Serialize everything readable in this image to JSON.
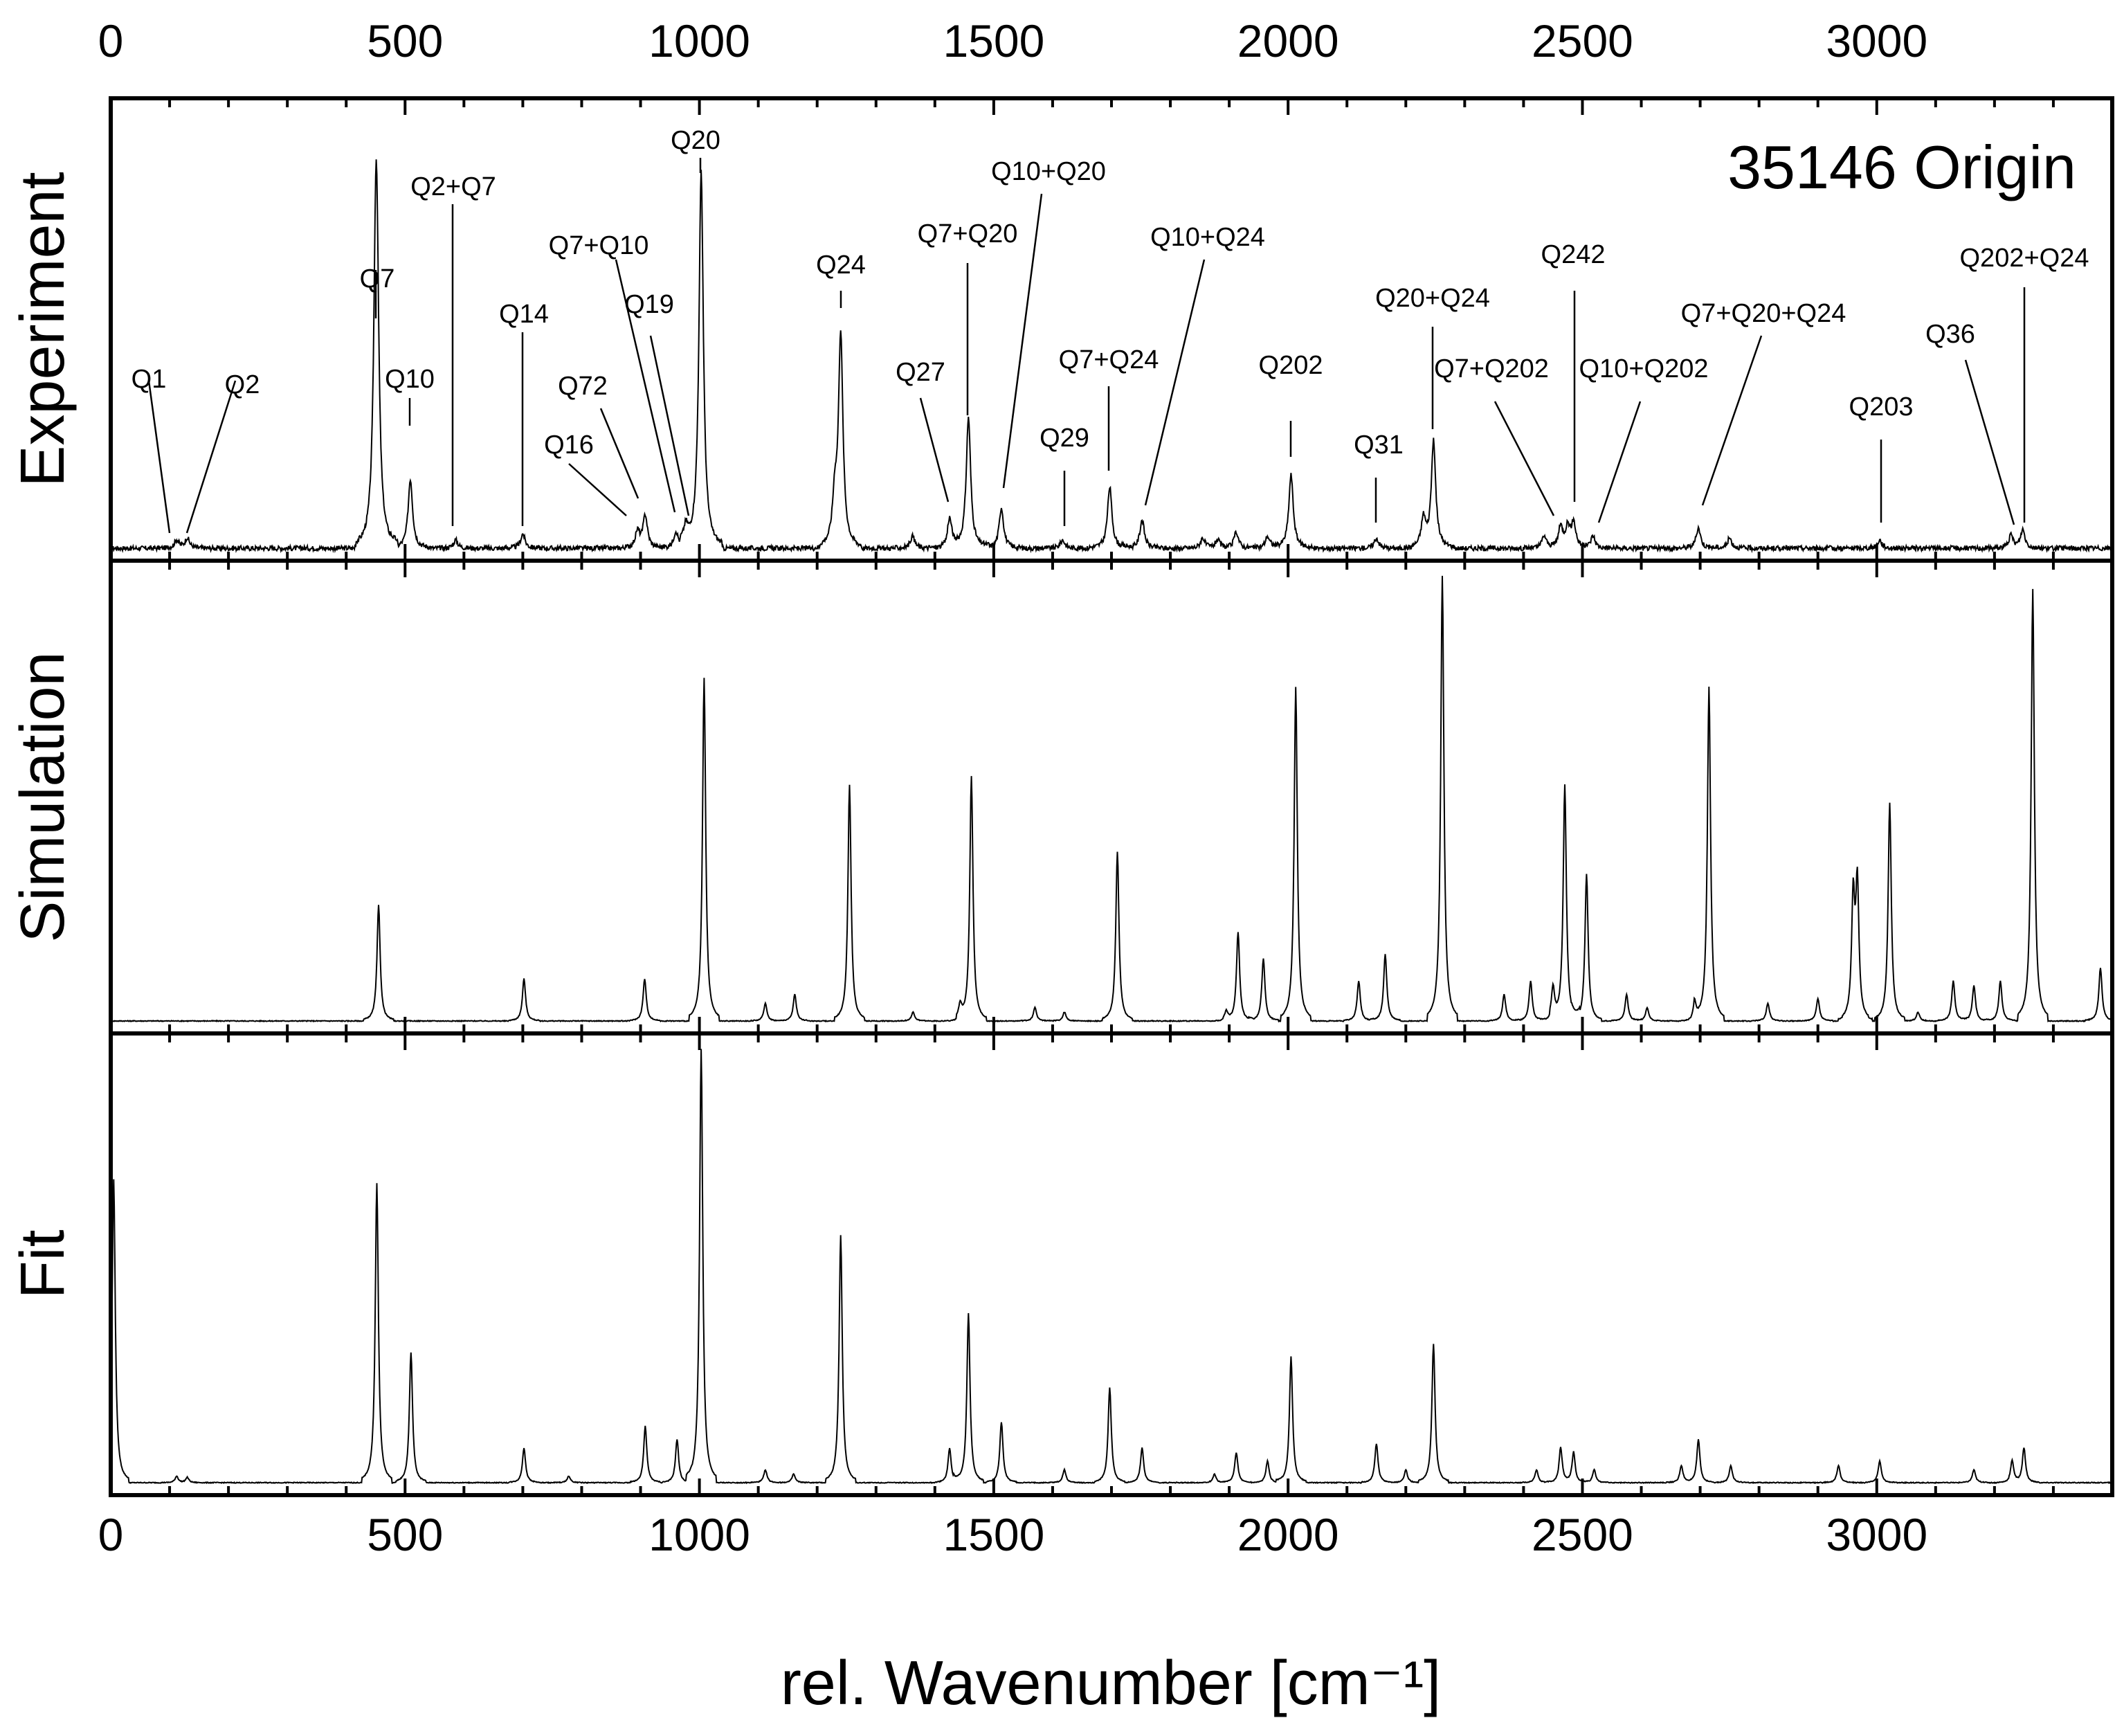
{
  "chart_data": {
    "type": "line",
    "title": "35146 Origin",
    "xlabel": "rel. Wavenumber [cm⁻¹]",
    "xlim": [
      0,
      3400
    ],
    "xticks": [
      0,
      500,
      1000,
      1500,
      2000,
      2500,
      3000
    ],
    "xtick_labels": [
      "0",
      "500",
      "1000",
      "1500",
      "2000",
      "2500",
      "3000"
    ],
    "minor_tick_step": 100,
    "ylim": [
      0,
      1
    ],
    "panels": [
      {
        "name": "Experiment",
        "ylabel": "Experiment",
        "peaks": [
          [
            112,
            0.02
          ],
          [
            130,
            0.025
          ],
          [
            450,
            0.48
          ],
          [
            452,
            0.52
          ],
          [
            509,
            0.17
          ],
          [
            586,
            0.02
          ],
          [
            700,
            0.035
          ],
          [
            895,
            0.04
          ],
          [
            908,
            0.08
          ],
          [
            960,
            0.04
          ],
          [
            977,
            0.04
          ],
          [
            1003,
            0.92
          ],
          [
            1230,
            0.11
          ],
          [
            1240,
            0.52
          ],
          [
            1362,
            0.03
          ],
          [
            1425,
            0.07
          ],
          [
            1457,
            0.32
          ],
          [
            1513,
            0.1
          ],
          [
            1617,
            0.02
          ],
          [
            1697,
            0.15
          ],
          [
            1752,
            0.07
          ],
          [
            1855,
            0.025
          ],
          [
            1880,
            0.02
          ],
          [
            1912,
            0.04
          ],
          [
            1965,
            0.03
          ],
          [
            2005,
            0.18
          ],
          [
            2150,
            0.025
          ],
          [
            2230,
            0.07
          ],
          [
            2247,
            0.26
          ],
          [
            2435,
            0.03
          ],
          [
            2463,
            0.05
          ],
          [
            2475,
            0.05
          ],
          [
            2485,
            0.06
          ],
          [
            2518,
            0.03
          ],
          [
            2697,
            0.05
          ],
          [
            2750,
            0.025
          ],
          [
            3005,
            0.02
          ],
          [
            3228,
            0.03
          ],
          [
            3248,
            0.045
          ]
        ],
        "labels": [
          {
            "text": "Q1",
            "x": 125
          },
          {
            "text": "Q2",
            "x": 140
          },
          {
            "text": "Q7",
            "x": 452
          },
          {
            "text": "Q10",
            "x": 509
          },
          {
            "text": "Q2+Q7",
            "x": 586
          },
          {
            "text": "Q14",
            "x": 703
          },
          {
            "text": "Q16",
            "x": 888
          },
          {
            "text": "Q72",
            "x": 905
          },
          {
            "text": "Q7+Q10",
            "x": 960
          },
          {
            "text": "Q19",
            "x": 977
          },
          {
            "text": "Q20",
            "x": 1003
          },
          {
            "text": "Q24",
            "x": 1241
          },
          {
            "text": "Q27",
            "x": 1425
          },
          {
            "text": "Q7+Q20",
            "x": 1457
          },
          {
            "text": "Q10+Q20",
            "x": 1513
          },
          {
            "text": "Q29",
            "x": 1617
          },
          {
            "text": "Q7+Q24",
            "x": 1697
          },
          {
            "text": "Q10+Q24",
            "x": 1752
          },
          {
            "text": "Q202",
            "x": 2005
          },
          {
            "text": "Q31",
            "x": 2150
          },
          {
            "text": "Q20+Q24",
            "x": 2247
          },
          {
            "text": "Q7+Q202",
            "x": 2463
          },
          {
            "text": "Q242",
            "x": 2485
          },
          {
            "text": "Q10+Q202",
            "x": 2518
          },
          {
            "text": "Q7+Q20+Q24",
            "x": 2697
          },
          {
            "text": "Q203",
            "x": 3005
          },
          {
            "text": "Q36",
            "x": 3228
          },
          {
            "text": "Q202+Q24",
            "x": 3248
          }
        ]
      },
      {
        "name": "Simulation",
        "ylabel": "Simulation",
        "peaks": [
          [
            455,
            0.26
          ],
          [
            702,
            0.095
          ],
          [
            907,
            0.095
          ],
          [
            1008,
            0.77
          ],
          [
            1112,
            0.04
          ],
          [
            1162,
            0.06
          ],
          [
            1255,
            0.53
          ],
          [
            1363,
            0.02
          ],
          [
            1443,
            0.03
          ],
          [
            1462,
            0.55
          ],
          [
            1570,
            0.03
          ],
          [
            1620,
            0.02
          ],
          [
            1710,
            0.38
          ],
          [
            1895,
            0.02
          ],
          [
            1915,
            0.2
          ],
          [
            1958,
            0.14
          ],
          [
            2013,
            0.75
          ],
          [
            2120,
            0.09
          ],
          [
            2165,
            0.15
          ],
          [
            2262,
            1.0
          ],
          [
            2367,
            0.06
          ],
          [
            2412,
            0.09
          ],
          [
            2450,
            0.07
          ],
          [
            2470,
            0.53
          ],
          [
            2507,
            0.33
          ],
          [
            2575,
            0.06
          ],
          [
            2610,
            0.03
          ],
          [
            2690,
            0.04
          ],
          [
            2715,
            0.75
          ],
          [
            2815,
            0.04
          ],
          [
            2900,
            0.05
          ],
          [
            2960,
            0.27
          ],
          [
            2967,
            0.3
          ],
          [
            3022,
            0.49
          ],
          [
            3070,
            0.02
          ],
          [
            3130,
            0.09
          ],
          [
            3165,
            0.08
          ],
          [
            3210,
            0.09
          ],
          [
            3265,
            0.97
          ],
          [
            3380,
            0.12
          ]
        ]
      },
      {
        "name": "Fit",
        "ylabel": "Fit",
        "peaks": [
          [
            5,
            0.7
          ],
          [
            112,
            0.015
          ],
          [
            130,
            0.012
          ],
          [
            452,
            0.69
          ],
          [
            510,
            0.3
          ],
          [
            702,
            0.08
          ],
          [
            778,
            0.015
          ],
          [
            908,
            0.13
          ],
          [
            962,
            0.1
          ],
          [
            1003,
            1.0
          ],
          [
            1112,
            0.03
          ],
          [
            1160,
            0.02
          ],
          [
            1240,
            0.57
          ],
          [
            1425,
            0.08
          ],
          [
            1457,
            0.39
          ],
          [
            1513,
            0.14
          ],
          [
            1620,
            0.03
          ],
          [
            1697,
            0.22
          ],
          [
            1752,
            0.08
          ],
          [
            1875,
            0.02
          ],
          [
            1912,
            0.07
          ],
          [
            1965,
            0.05
          ],
          [
            2005,
            0.29
          ],
          [
            2150,
            0.09
          ],
          [
            2200,
            0.03
          ],
          [
            2247,
            0.32
          ],
          [
            2422,
            0.03
          ],
          [
            2463,
            0.08
          ],
          [
            2485,
            0.07
          ],
          [
            2520,
            0.03
          ],
          [
            2668,
            0.04
          ],
          [
            2697,
            0.1
          ],
          [
            2752,
            0.04
          ],
          [
            2935,
            0.04
          ],
          [
            3005,
            0.05
          ],
          [
            3165,
            0.03
          ],
          [
            3230,
            0.05
          ],
          [
            3250,
            0.08
          ]
        ]
      }
    ]
  }
}
